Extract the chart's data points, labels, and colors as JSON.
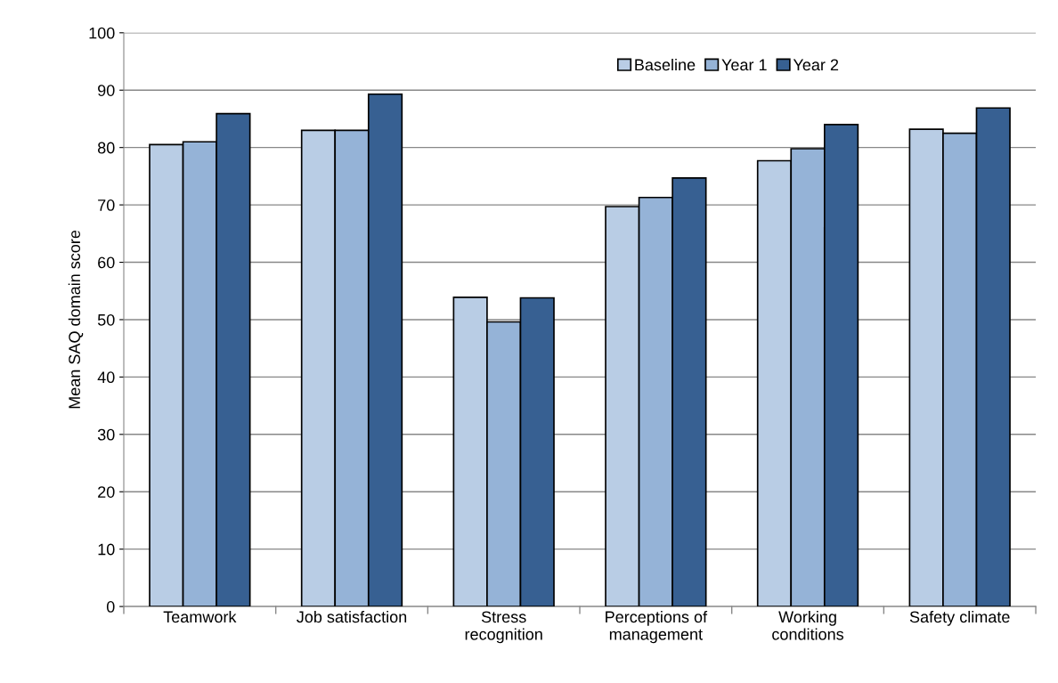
{
  "chart_data": {
    "type": "bar",
    "ylabel": "Mean SAQ domain score",
    "categories": [
      "Teamwork",
      "Job satisfaction",
      "Stress\nrecognition",
      "Perceptions of\nmanagement",
      "Working\nconditions",
      "Safety climate"
    ],
    "series": [
      {
        "name": "Baseline",
        "color": "#b9cde5",
        "values": [
          80.5,
          83,
          53.9,
          69.7,
          77.7,
          83.2
        ]
      },
      {
        "name": "Year 1",
        "color": "#95b3d7",
        "values": [
          81,
          83,
          49.6,
          71.3,
          79.8,
          82.5
        ]
      },
      {
        "name": "Year 2",
        "color": "#376092",
        "values": [
          85.9,
          89.3,
          53.8,
          74.7,
          84,
          86.9
        ]
      }
    ],
    "ylim": [
      0,
      100
    ],
    "yticks": [
      0,
      10,
      20,
      30,
      40,
      50,
      60,
      70,
      80,
      90,
      100
    ],
    "grid": "y",
    "legend": "top right"
  }
}
